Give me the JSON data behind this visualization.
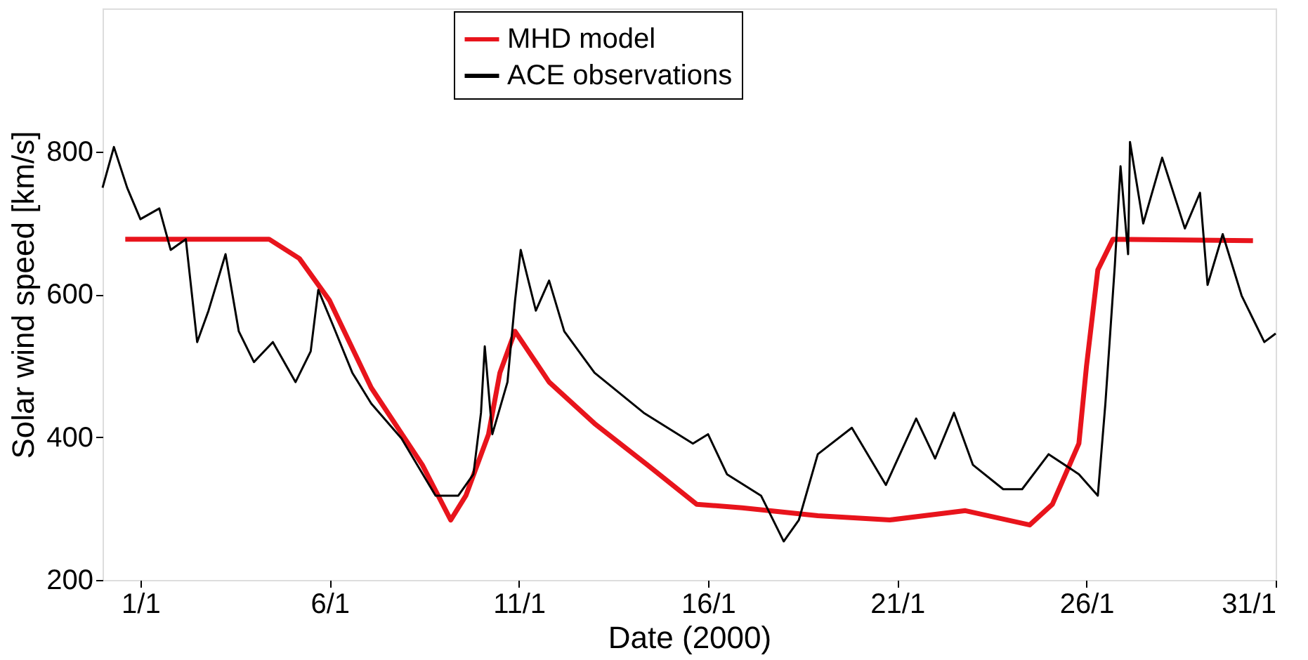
{
  "chart_data": {
    "type": "line",
    "xlabel": "Date (2000)",
    "ylabel": "Solar wind speed [km/s]",
    "xlim": [
      "1999-12-31",
      "2000-01-31"
    ],
    "ylim": [
      200,
      1000
    ],
    "yticks": [
      200,
      400,
      600,
      800
    ],
    "xticks": [
      {
        "value": "2000-01-01",
        "label": "1/1"
      },
      {
        "value": "2000-01-06",
        "label": "6/1"
      },
      {
        "value": "2000-01-11",
        "label": "11/1"
      },
      {
        "value": "2000-01-16",
        "label": "16/1"
      },
      {
        "value": "2000-01-21",
        "label": "21/1"
      },
      {
        "value": "2000-01-26",
        "label": "26/1"
      },
      {
        "value": "2000-01-31",
        "label": "31/1"
      }
    ],
    "grid": false,
    "legend": "top",
    "line_style": "solid",
    "marker": "none",
    "series": [
      {
        "name": "MHD model",
        "color": "#e8141c",
        "x": [
          "1999-12-31T14:24",
          "2000-01-04T09:36",
          "2000-01-05T04:48",
          "2000-01-06T00:00",
          "2000-01-07T02:24",
          "2000-01-08T10:48",
          "2000-01-09T04:48",
          "2000-01-09T14:24",
          "2000-01-10T04:48",
          "2000-01-10T12:00",
          "2000-01-10T21:36",
          "2000-01-11T19:12",
          "2000-01-13T00:00",
          "2000-01-14T09:36",
          "2000-01-15T16:48",
          "2000-01-16T21:36",
          "2000-01-18T21:36",
          "2000-01-20T19:12",
          "2000-01-22T19:12",
          "2000-01-24T12:00",
          "2000-01-25T02:24",
          "2000-01-25T19:12",
          "2000-01-26T00:00",
          "2000-01-26T07:12",
          "2000-01-26T16:48",
          "2000-01-30T09:36"
        ],
        "values": [
          677,
          677,
          650,
          591,
          469,
          361,
          284,
          318,
          404,
          490,
          548,
          477,
          419,
          361,
          306,
          301,
          290,
          284,
          297,
          277,
          306,
          391,
          499,
          634,
          677,
          675
        ]
      },
      {
        "name": "ACE observations",
        "color": "#000000",
        "x": [
          "1999-12-31T00:00",
          "1999-12-31T07:12",
          "1999-12-31T15:36",
          "2000-01-01T00:00",
          "2000-01-01T12:00",
          "2000-01-01T19:12",
          "2000-01-02T04:48",
          "2000-01-02T12:00",
          "2000-01-02T19:12",
          "2000-01-03T06:00",
          "2000-01-03T14:24",
          "2000-01-04T00:00",
          "2000-01-04T12:00",
          "2000-01-05T02:24",
          "2000-01-05T12:00",
          "2000-01-05T16:48",
          "2000-01-06T02:24",
          "2000-01-06T14:24",
          "2000-01-07T02:24",
          "2000-01-07T21:36",
          "2000-01-08T19:12",
          "2000-01-09T09:36",
          "2000-01-09T19:12",
          "2000-01-10T00:00",
          "2000-01-10T02:24",
          "2000-01-10T07:12",
          "2000-01-10T16:48",
          "2000-01-10T21:36",
          "2000-01-11T01:12",
          "2000-01-11T10:48",
          "2000-01-11T19:12",
          "2000-01-12T04:48",
          "2000-01-13T00:00",
          "2000-01-14T07:12",
          "2000-01-15T14:24",
          "2000-01-16T00:00",
          "2000-01-16T12:00",
          "2000-01-17T09:36",
          "2000-01-18T00:00",
          "2000-01-18T09:36",
          "2000-01-18T21:36",
          "2000-01-19T19:12",
          "2000-01-20T16:48",
          "2000-01-21T12:00",
          "2000-01-22T00:00",
          "2000-01-22T12:00",
          "2000-01-23T00:00",
          "2000-01-23T19:12",
          "2000-01-24T07:12",
          "2000-01-25T00:00",
          "2000-01-25T19:12",
          "2000-01-26T07:12",
          "2000-01-26T12:00",
          "2000-01-26T18:00",
          "2000-01-26T21:36",
          "2000-01-27T02:24",
          "2000-01-27T03:36",
          "2000-01-27T12:00",
          "2000-01-28T00:00",
          "2000-01-28T14:24",
          "2000-01-29T00:00",
          "2000-01-29T04:48",
          "2000-01-29T14:24",
          "2000-01-30T02:24",
          "2000-01-30T16:48",
          "2000-01-31T00:00"
        ],
        "values": [
          749,
          806,
          749,
          705,
          720,
          662,
          677,
          533,
          577,
          656,
          548,
          505,
          533,
          477,
          520,
          606,
          555,
          490,
          447,
          398,
          318,
          318,
          348,
          434,
          527,
          404,
          477,
          591,
          662,
          577,
          619,
          548,
          490,
          434,
          391,
          404,
          348,
          318,
          254,
          284,
          376,
          413,
          333,
          426,
          370,
          434,
          361,
          327,
          327,
          376,
          348,
          318,
          447,
          641,
          779,
          656,
          813,
          699,
          791,
          692,
          742,
          613,
          684,
          598,
          533,
          545
        ]
      }
    ]
  }
}
